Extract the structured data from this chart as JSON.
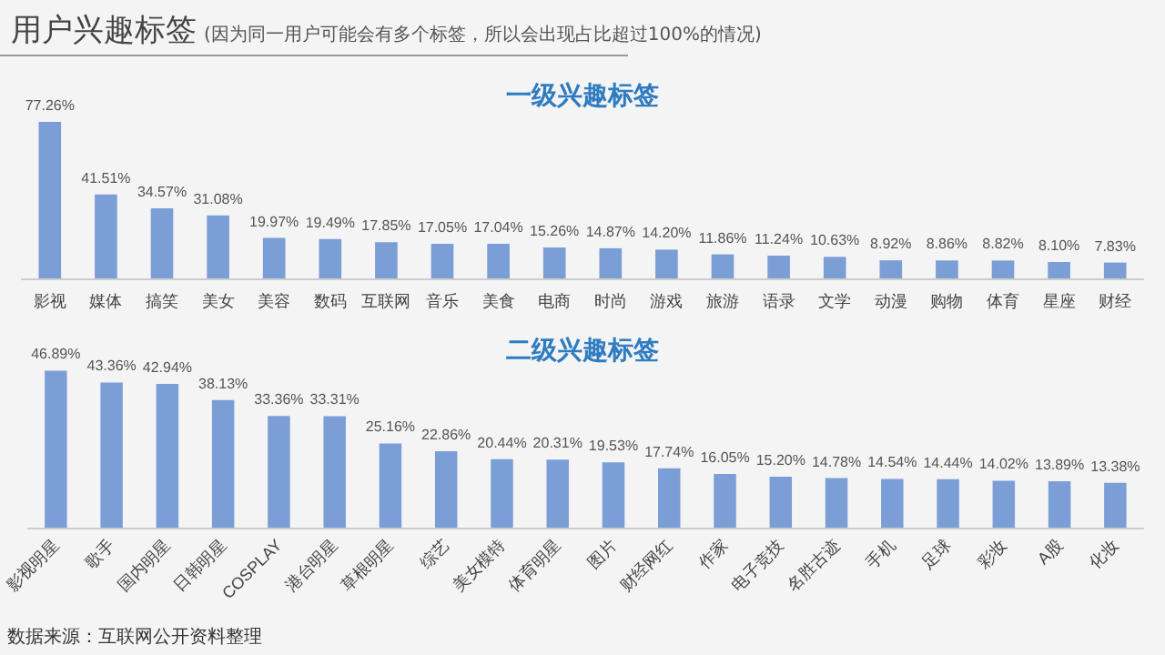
{
  "chart_data": [
    {
      "type": "bar",
      "title": "一级兴趣标签",
      "annotations": [
        "用户兴趣标签",
        "(因为同一用户可能会有多个标签，所以会出现占比超过100%的情况)"
      ],
      "categories": [
        "影视",
        "媒体",
        "搞笑",
        "美女",
        "美容",
        "数码",
        "互联网",
        "音乐",
        "美食",
        "电商",
        "时尚",
        "游戏",
        "旅游",
        "语录",
        "文学",
        "动漫",
        "购物",
        "体育",
        "星座",
        "财经"
      ],
      "series": [
        {
          "color": "#7b9ed6",
          "values": [
            77.26,
            41.51,
            34.57,
            31.08,
            19.97,
            19.49,
            17.85,
            17.05,
            17.04,
            15.26,
            14.87,
            14.2,
            11.86,
            11.24,
            10.63,
            8.92,
            8.86,
            8.82,
            8.1,
            7.83
          ],
          "value_labels": [
            "77.26%",
            "41.51%",
            "34.57%",
            "31.08%",
            "19.97%",
            "19.49%",
            "17.85%",
            "17.05%",
            "17.04%",
            "15.26%",
            "14.87%",
            "14.20%",
            "11.86%",
            "11.24%",
            "10.63%",
            "8.92%",
            "8.86%",
            "8.82%",
            "8.10%",
            "7.83%"
          ]
        }
      ],
      "grid": false
    },
    {
      "type": "bar",
      "title": "二级兴趣标签",
      "annotations": [
        "数据来源：互联网公开资料整理"
      ],
      "categories": [
        "影视明星",
        "歌手",
        "国内明星",
        "日韩明星",
        "COSPLAY",
        "港台明星",
        "草根明星",
        "综艺",
        "美女模特",
        "体育明星",
        "图片",
        "财经网红",
        "作家",
        "电子竞技",
        "名胜古迹",
        "手机",
        "足球",
        "彩妆",
        "A股",
        "化妆"
      ],
      "series": [
        {
          "color": "#7b9ed6",
          "values": [
            46.89,
            43.36,
            42.94,
            38.13,
            33.36,
            33.31,
            25.16,
            22.86,
            20.44,
            20.31,
            19.53,
            17.74,
            16.05,
            15.2,
            14.78,
            14.54,
            14.44,
            14.02,
            13.89,
            13.38
          ],
          "value_labels": [
            "46.89%",
            "43.36%",
            "42.94%",
            "38.13%",
            "33.36%",
            "33.31%",
            "25.16%",
            "22.86%",
            "20.44%",
            "20.31%",
            "19.53%",
            "17.74%",
            "16.05%",
            "15.20%",
            "14.78%",
            "14.54%",
            "14.44%",
            "14.02%",
            "13.89%",
            "13.38%"
          ]
        }
      ],
      "grid": false
    }
  ]
}
